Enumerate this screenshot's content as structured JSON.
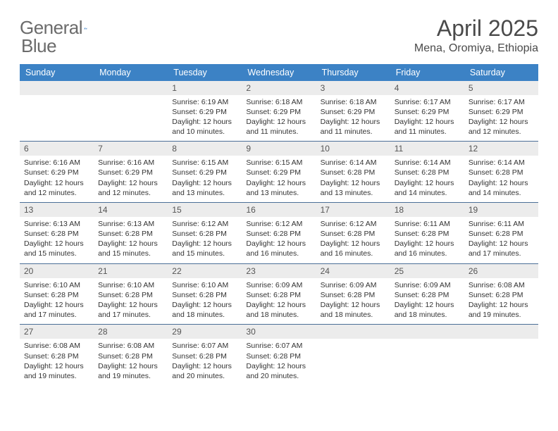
{
  "brand": {
    "word1": "General",
    "word2": "Blue"
  },
  "title": "April 2025",
  "location": "Mena, Oromiya, Ethiopia",
  "colors": {
    "header_bg": "#3c82c5",
    "header_text": "#ffffff",
    "daynum_bg": "#ececec",
    "week_divider": "#4b6f97",
    "text": "#333333",
    "brand_gray": "#6b6b6b",
    "brand_blue": "#2f78c2"
  },
  "day_headers": [
    "Sunday",
    "Monday",
    "Tuesday",
    "Wednesday",
    "Thursday",
    "Friday",
    "Saturday"
  ],
  "weeks": [
    [
      {
        "day": "",
        "sunrise": "",
        "sunset": "",
        "daylight": ""
      },
      {
        "day": "",
        "sunrise": "",
        "sunset": "",
        "daylight": ""
      },
      {
        "day": "1",
        "sunrise": "Sunrise: 6:19 AM",
        "sunset": "Sunset: 6:29 PM",
        "daylight": "Daylight: 12 hours and 10 minutes."
      },
      {
        "day": "2",
        "sunrise": "Sunrise: 6:18 AM",
        "sunset": "Sunset: 6:29 PM",
        "daylight": "Daylight: 12 hours and 11 minutes."
      },
      {
        "day": "3",
        "sunrise": "Sunrise: 6:18 AM",
        "sunset": "Sunset: 6:29 PM",
        "daylight": "Daylight: 12 hours and 11 minutes."
      },
      {
        "day": "4",
        "sunrise": "Sunrise: 6:17 AM",
        "sunset": "Sunset: 6:29 PM",
        "daylight": "Daylight: 12 hours and 11 minutes."
      },
      {
        "day": "5",
        "sunrise": "Sunrise: 6:17 AM",
        "sunset": "Sunset: 6:29 PM",
        "daylight": "Daylight: 12 hours and 12 minutes."
      }
    ],
    [
      {
        "day": "6",
        "sunrise": "Sunrise: 6:16 AM",
        "sunset": "Sunset: 6:29 PM",
        "daylight": "Daylight: 12 hours and 12 minutes."
      },
      {
        "day": "7",
        "sunrise": "Sunrise: 6:16 AM",
        "sunset": "Sunset: 6:29 PM",
        "daylight": "Daylight: 12 hours and 12 minutes."
      },
      {
        "day": "8",
        "sunrise": "Sunrise: 6:15 AM",
        "sunset": "Sunset: 6:29 PM",
        "daylight": "Daylight: 12 hours and 13 minutes."
      },
      {
        "day": "9",
        "sunrise": "Sunrise: 6:15 AM",
        "sunset": "Sunset: 6:29 PM",
        "daylight": "Daylight: 12 hours and 13 minutes."
      },
      {
        "day": "10",
        "sunrise": "Sunrise: 6:14 AM",
        "sunset": "Sunset: 6:28 PM",
        "daylight": "Daylight: 12 hours and 13 minutes."
      },
      {
        "day": "11",
        "sunrise": "Sunrise: 6:14 AM",
        "sunset": "Sunset: 6:28 PM",
        "daylight": "Daylight: 12 hours and 14 minutes."
      },
      {
        "day": "12",
        "sunrise": "Sunrise: 6:14 AM",
        "sunset": "Sunset: 6:28 PM",
        "daylight": "Daylight: 12 hours and 14 minutes."
      }
    ],
    [
      {
        "day": "13",
        "sunrise": "Sunrise: 6:13 AM",
        "sunset": "Sunset: 6:28 PM",
        "daylight": "Daylight: 12 hours and 15 minutes."
      },
      {
        "day": "14",
        "sunrise": "Sunrise: 6:13 AM",
        "sunset": "Sunset: 6:28 PM",
        "daylight": "Daylight: 12 hours and 15 minutes."
      },
      {
        "day": "15",
        "sunrise": "Sunrise: 6:12 AM",
        "sunset": "Sunset: 6:28 PM",
        "daylight": "Daylight: 12 hours and 15 minutes."
      },
      {
        "day": "16",
        "sunrise": "Sunrise: 6:12 AM",
        "sunset": "Sunset: 6:28 PM",
        "daylight": "Daylight: 12 hours and 16 minutes."
      },
      {
        "day": "17",
        "sunrise": "Sunrise: 6:12 AM",
        "sunset": "Sunset: 6:28 PM",
        "daylight": "Daylight: 12 hours and 16 minutes."
      },
      {
        "day": "18",
        "sunrise": "Sunrise: 6:11 AM",
        "sunset": "Sunset: 6:28 PM",
        "daylight": "Daylight: 12 hours and 16 minutes."
      },
      {
        "day": "19",
        "sunrise": "Sunrise: 6:11 AM",
        "sunset": "Sunset: 6:28 PM",
        "daylight": "Daylight: 12 hours and 17 minutes."
      }
    ],
    [
      {
        "day": "20",
        "sunrise": "Sunrise: 6:10 AM",
        "sunset": "Sunset: 6:28 PM",
        "daylight": "Daylight: 12 hours and 17 minutes."
      },
      {
        "day": "21",
        "sunrise": "Sunrise: 6:10 AM",
        "sunset": "Sunset: 6:28 PM",
        "daylight": "Daylight: 12 hours and 17 minutes."
      },
      {
        "day": "22",
        "sunrise": "Sunrise: 6:10 AM",
        "sunset": "Sunset: 6:28 PM",
        "daylight": "Daylight: 12 hours and 18 minutes."
      },
      {
        "day": "23",
        "sunrise": "Sunrise: 6:09 AM",
        "sunset": "Sunset: 6:28 PM",
        "daylight": "Daylight: 12 hours and 18 minutes."
      },
      {
        "day": "24",
        "sunrise": "Sunrise: 6:09 AM",
        "sunset": "Sunset: 6:28 PM",
        "daylight": "Daylight: 12 hours and 18 minutes."
      },
      {
        "day": "25",
        "sunrise": "Sunrise: 6:09 AM",
        "sunset": "Sunset: 6:28 PM",
        "daylight": "Daylight: 12 hours and 18 minutes."
      },
      {
        "day": "26",
        "sunrise": "Sunrise: 6:08 AM",
        "sunset": "Sunset: 6:28 PM",
        "daylight": "Daylight: 12 hours and 19 minutes."
      }
    ],
    [
      {
        "day": "27",
        "sunrise": "Sunrise: 6:08 AM",
        "sunset": "Sunset: 6:28 PM",
        "daylight": "Daylight: 12 hours and 19 minutes."
      },
      {
        "day": "28",
        "sunrise": "Sunrise: 6:08 AM",
        "sunset": "Sunset: 6:28 PM",
        "daylight": "Daylight: 12 hours and 19 minutes."
      },
      {
        "day": "29",
        "sunrise": "Sunrise: 6:07 AM",
        "sunset": "Sunset: 6:28 PM",
        "daylight": "Daylight: 12 hours and 20 minutes."
      },
      {
        "day": "30",
        "sunrise": "Sunrise: 6:07 AM",
        "sunset": "Sunset: 6:28 PM",
        "daylight": "Daylight: 12 hours and 20 minutes."
      },
      {
        "day": "",
        "sunrise": "",
        "sunset": "",
        "daylight": ""
      },
      {
        "day": "",
        "sunrise": "",
        "sunset": "",
        "daylight": ""
      },
      {
        "day": "",
        "sunrise": "",
        "sunset": "",
        "daylight": ""
      }
    ]
  ]
}
